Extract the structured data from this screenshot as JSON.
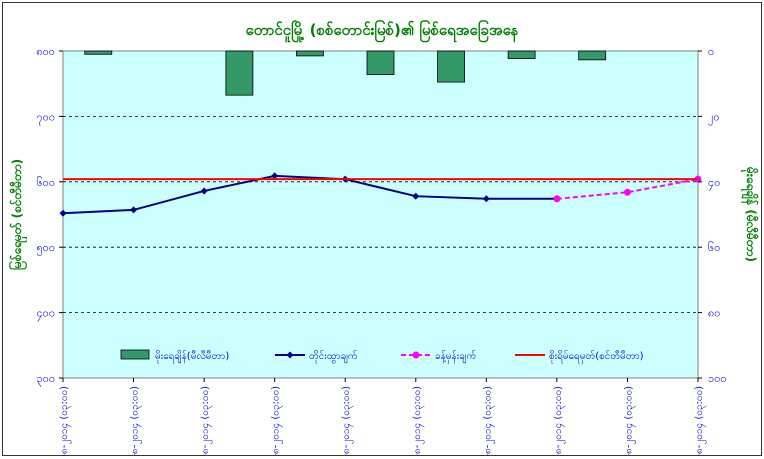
{
  "chart_data": {
    "type": "bar+line",
    "title": "တောင်ငူမြို့ (စစ်တောင်းမြစ်)၏ မြစ်ရေအခြေအနေ",
    "ylabel_left": "မြစ်ရေမှတ် (စင်တီမီတာ)",
    "ylabel_right": "မိုးရေချိန် (မီလီမီတာ)",
    "y_left_range": [
      300,
      800
    ],
    "y_left_ticks": [
      "၈၀၀",
      "၇၀၀",
      "၆၀၀",
      "၅၀၀",
      "၄၀၀",
      "၃၀၀"
    ],
    "y_right_range": [
      0,
      100
    ],
    "y_right_ticks": [
      "၀",
      "၂၀",
      "၄၀",
      "၆၀",
      "၈၀",
      "၁၀၀"
    ],
    "categories": [
      "၁၃-၈-၂၀၁၄ (၀၃:၀၀)",
      "၁၄-၈-၂၀၁၄ (၀၃:၀၀)",
      "၁၅-၈-၂၀၁၄ (၀၃:၀၀)",
      "၁၆-၈-၂၀၁၄ (၀၃:၀၀)",
      "၁၇-၈-၂၀၁၄ (၀၃:၀၀)",
      "၁၈-၈-၂၀၁၄ (၀၃:၀၀)",
      "၁၉-၈-၂၀၁၄ (၀၃:၀၀)",
      "၂၀-၈-၂၀၁၄ (၀၃:၀၀)",
      "၂၁-၈-၂၀၁၄ (၀၃:၀၀)",
      "၂၂-၈-၂၀၁၄ (၀၃:၀၀)"
    ],
    "series": [
      {
        "name": "မိုးရေချိန်(မီလီမီတာ)",
        "kind": "bar",
        "axis": "right",
        "color": "#339966",
        "values": [
          1,
          null,
          13.5,
          1.5,
          7.2,
          9.5,
          2.3,
          2.7,
          null,
          null
        ]
      },
      {
        "name": "တိုင်းထွာချက်",
        "kind": "line",
        "axis": "left",
        "color": "#000080",
        "values": [
          552,
          557,
          586,
          609,
          604,
          578,
          574,
          574,
          null,
          null
        ]
      },
      {
        "name": "ခန့်မှန်းချက်",
        "kind": "line-dashed",
        "axis": "left",
        "color": "#ff00ff",
        "values": [
          null,
          null,
          null,
          null,
          null,
          null,
          null,
          574,
          584,
          604
        ]
      },
      {
        "name": "စိုးရိမ်ရေမှတ်(စင်တီမီတာ)",
        "kind": "hline",
        "axis": "left",
        "color": "#ff0000",
        "value": 604
      }
    ],
    "grid": true,
    "legend_position": "bottom-inside"
  },
  "colors": {
    "plot_bg": "#ccffff",
    "axis_label": "#0000cc",
    "title": "#008000",
    "right_label": "#008000"
  }
}
